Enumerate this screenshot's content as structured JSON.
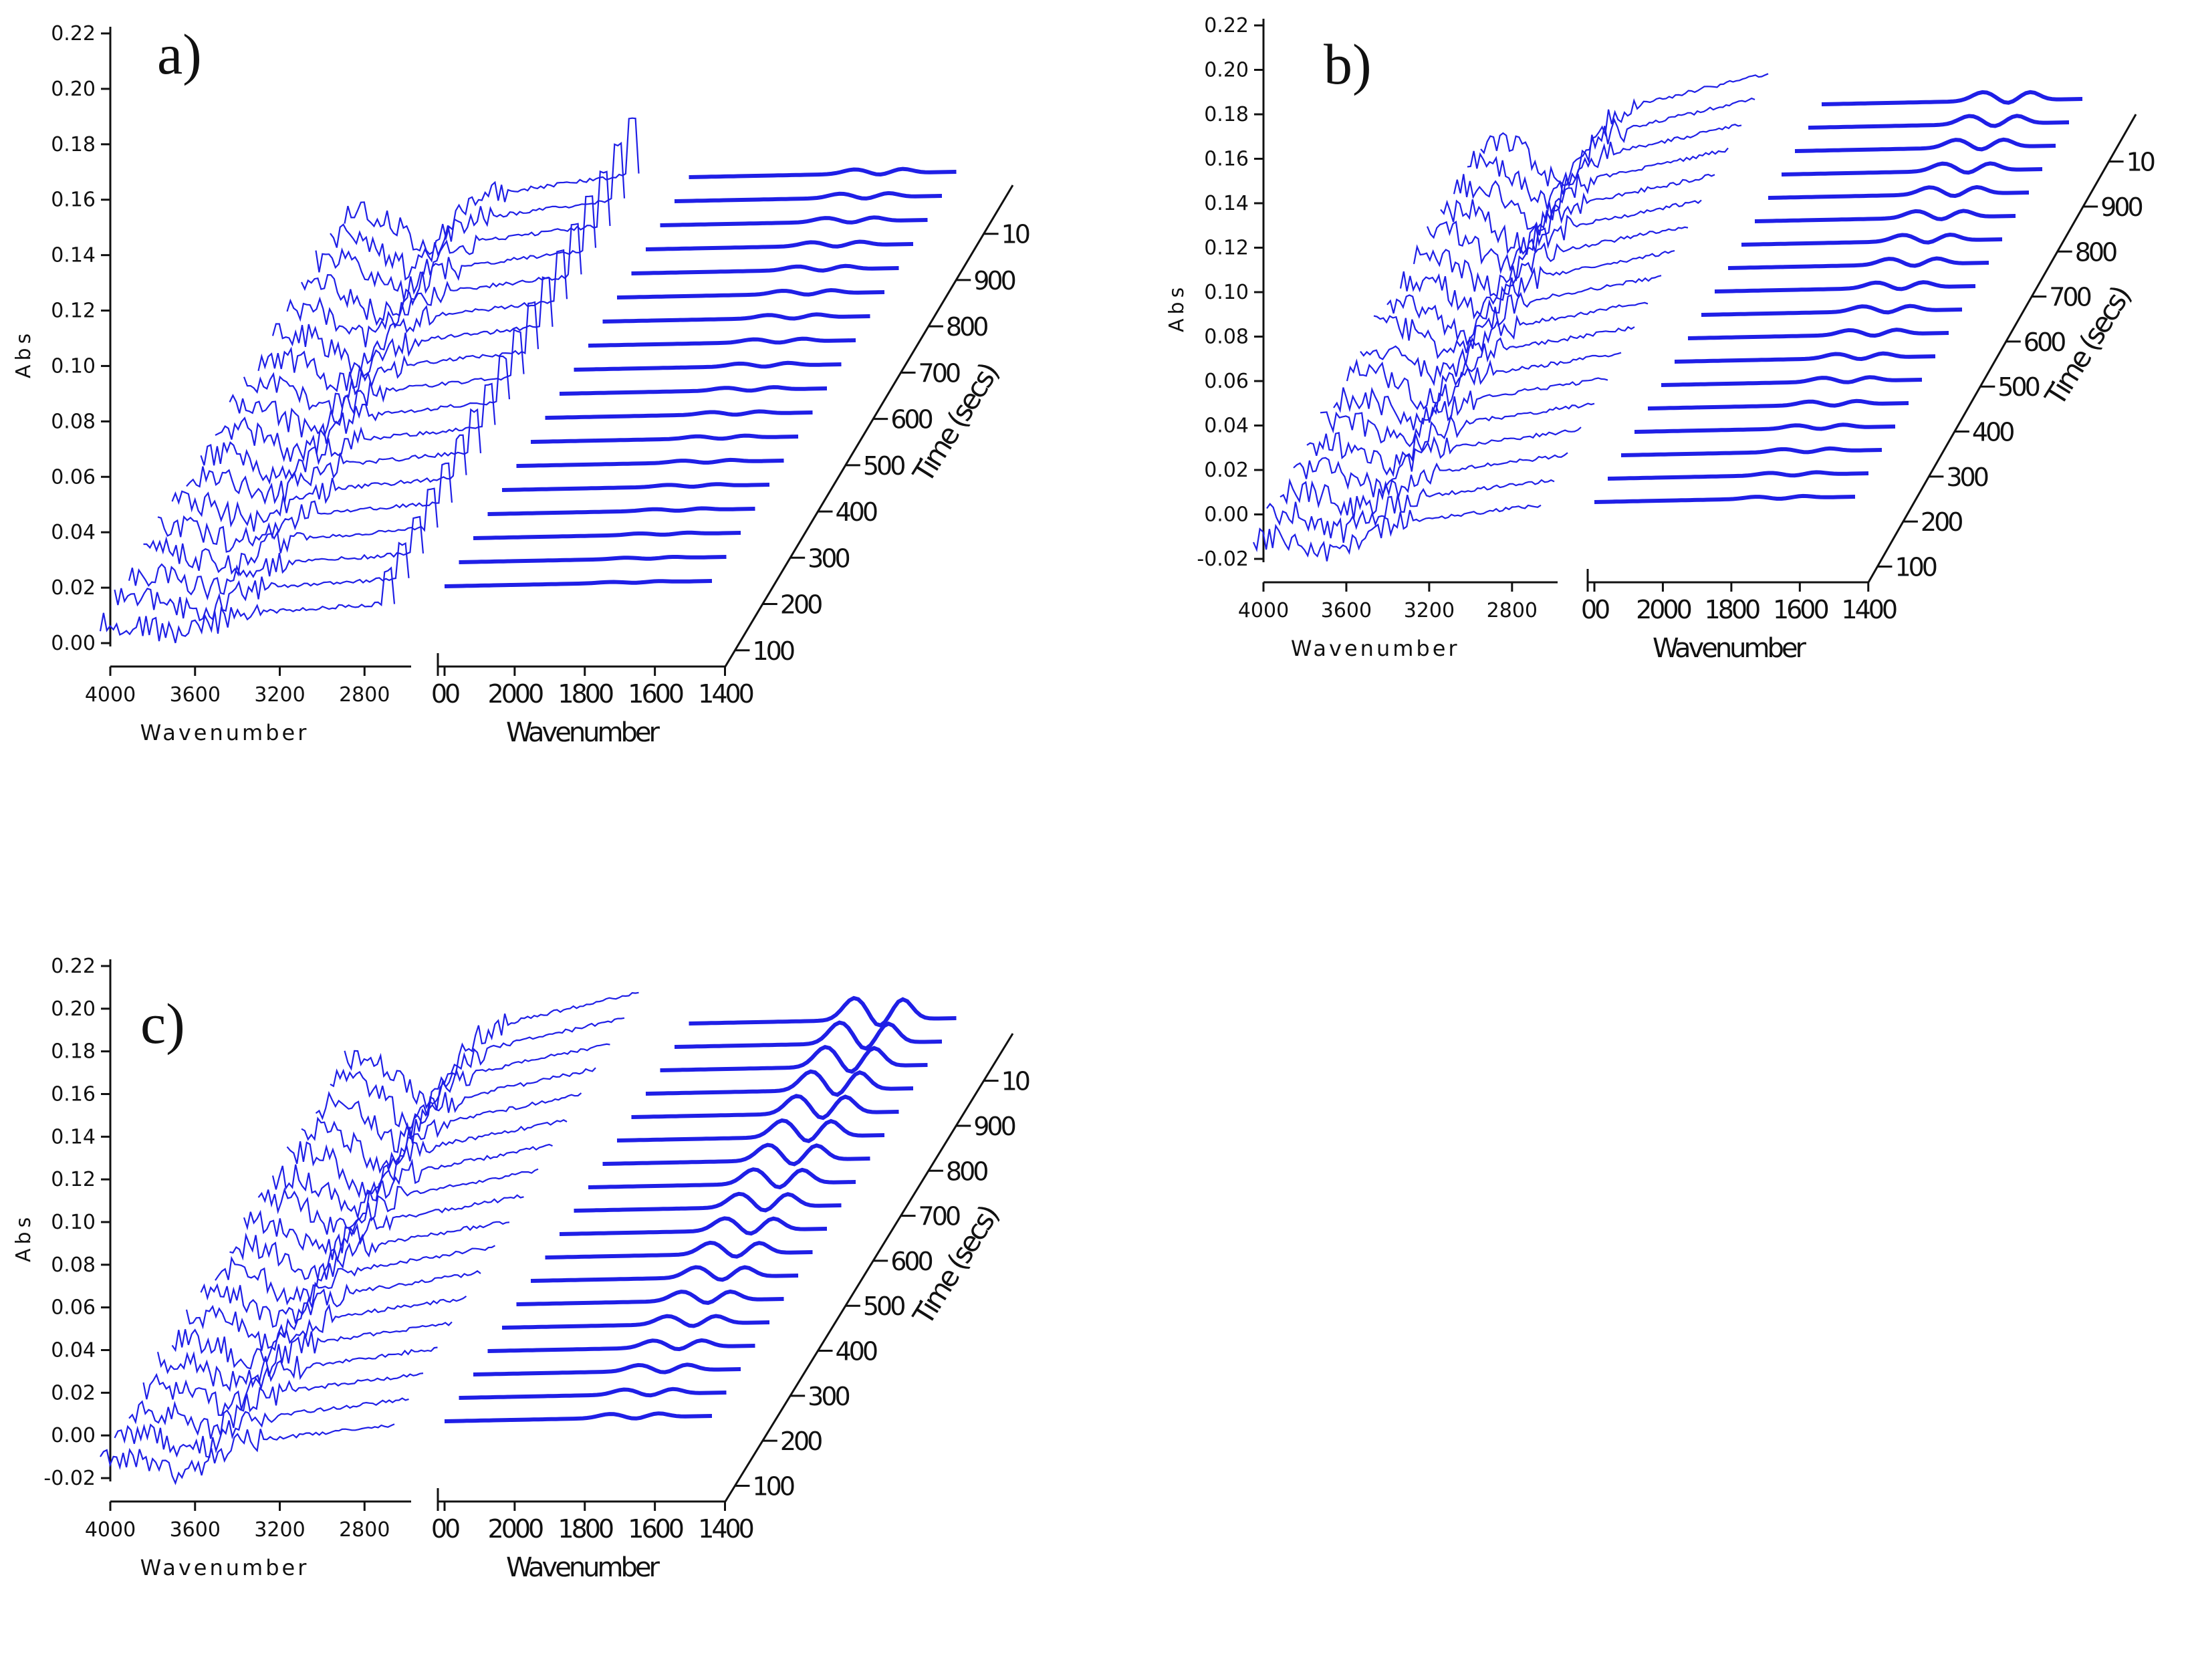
{
  "figure": {
    "line_color": "#1f1fe6",
    "axis_color": "#111111"
  },
  "chart_data": [
    {
      "panel": "a)",
      "type": "line",
      "subtype": "3d-waterfall",
      "ylabel": "Abs",
      "y_ticks": [
        "0.00",
        "0.02",
        "0.04",
        "0.06",
        "0.08",
        "0.10",
        "0.12",
        "0.14",
        "0.16",
        "0.18",
        "0.20",
        "0.22"
      ],
      "ylim": [
        0.0,
        0.22
      ],
      "left_xlabel": "Wavenumber",
      "left_x_ticks": [
        "4000",
        "3600",
        "3200",
        "2800"
      ],
      "right_xlabel": "Wavenumber",
      "right_x_ticks": [
        "00",
        "2000",
        "1800",
        "1600",
        "1400"
      ],
      "time_label": "Time (secs)",
      "time_ticks": [
        "100",
        "200",
        "300",
        "400",
        "500",
        "600",
        "700",
        "800",
        "900",
        "10"
      ],
      "n_spectra": 18
    },
    {
      "panel": "b)",
      "type": "line",
      "subtype": "3d-waterfall",
      "ylabel": "Abs",
      "y_ticks": [
        "-0.02",
        "0.00",
        "0.02",
        "0.04",
        "0.06",
        "0.08",
        "0.10",
        "0.12",
        "0.14",
        "0.16",
        "0.18",
        "0.20",
        "0.22"
      ],
      "ylim": [
        -0.02,
        0.22
      ],
      "left_xlabel": "Wavenumber",
      "left_x_ticks": [
        "4000",
        "3600",
        "3200",
        "2800"
      ],
      "right_xlabel": "Wavenumber",
      "right_x_ticks": [
        "00",
        "2000",
        "1800",
        "1600",
        "1400"
      ],
      "time_label": "Time (secs)",
      "time_ticks": [
        "100",
        "200",
        "300",
        "400",
        "500",
        "600",
        "700",
        "800",
        "900",
        "10"
      ],
      "n_spectra": 18
    },
    {
      "panel": "c)",
      "type": "line",
      "subtype": "3d-waterfall",
      "ylabel": "Abs",
      "y_ticks": [
        "-0.02",
        "0.00",
        "0.02",
        "0.04",
        "0.06",
        "0.08",
        "0.10",
        "0.12",
        "0.14",
        "0.16",
        "0.18",
        "0.20",
        "0.22"
      ],
      "ylim": [
        -0.02,
        0.22
      ],
      "left_xlabel": "Wavenumber",
      "left_x_ticks": [
        "4000",
        "3600",
        "3200",
        "2800"
      ],
      "right_xlabel": "Wavenumber",
      "right_x_ticks": [
        "00",
        "2000",
        "1800",
        "1600",
        "1400"
      ],
      "time_label": "Time (secs)",
      "time_ticks": [
        "100",
        "200",
        "300",
        "400",
        "500",
        "600",
        "700",
        "800",
        "900",
        "10"
      ],
      "n_spectra": 18
    }
  ]
}
